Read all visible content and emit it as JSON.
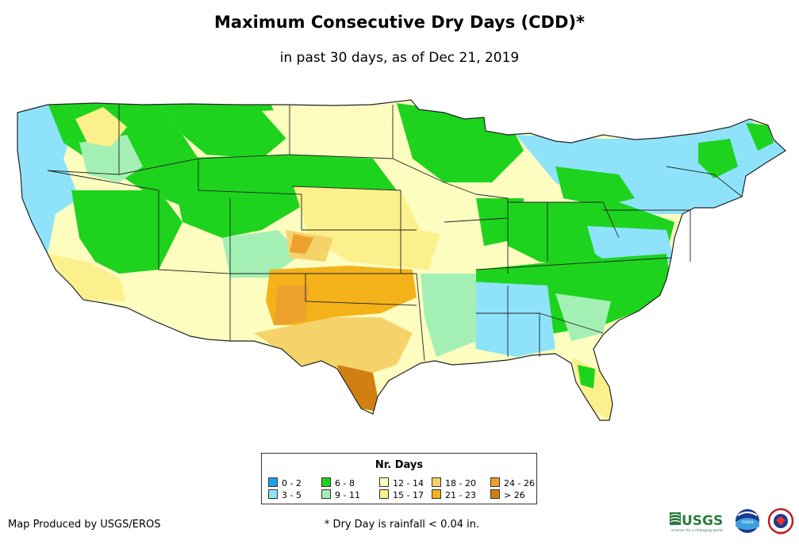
{
  "title": "Maximum Consecutive Dry Days (CDD)*",
  "subtitle": "in past 30 days, as of Dec 21, 2019",
  "legend": {
    "title": "Nr. Days",
    "items": [
      {
        "label": "0 - 2",
        "color": "#1aa3e8"
      },
      {
        "label": "3 - 5",
        "color": "#8ee3fa"
      },
      {
        "label": "6 - 8",
        "color": "#1ed31e"
      },
      {
        "label": "9 - 11",
        "color": "#a4efb4"
      },
      {
        "label": "12 - 14",
        "color": "#fdfdc0"
      },
      {
        "label": "15 - 17",
        "color": "#fbf08c"
      },
      {
        "label": "18 - 20",
        "color": "#f6d36a"
      },
      {
        "label": "21 - 23",
        "color": "#f3b21a"
      },
      {
        "label": "24 - 26",
        "color": "#eda12c"
      },
      {
        "label": "> 26",
        "color": "#d17f13"
      }
    ]
  },
  "credit": "Map Produced by USGS/EROS",
  "footnote": "* Dry Day is rainfall < 0.04 in.",
  "logos": {
    "usgs_text": "USGS",
    "usgs_tagline": "science for a changing world",
    "noaa_text": "noaa",
    "nws_text": "NWS"
  }
}
